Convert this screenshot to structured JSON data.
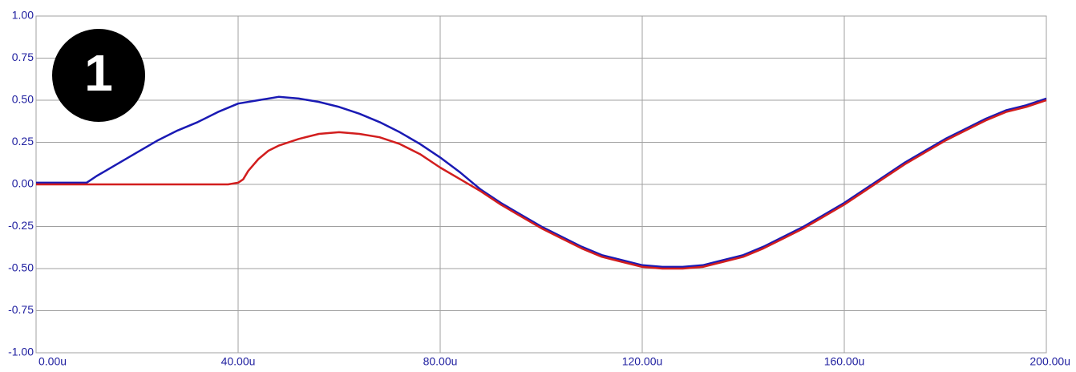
{
  "chart_data": {
    "type": "line",
    "badge": "1",
    "xlim": [
      0,
      200
    ],
    "ylim": [
      -1,
      1
    ],
    "xticks": [
      {
        "value": 0,
        "label": "0.00u"
      },
      {
        "value": 40,
        "label": "40.00u"
      },
      {
        "value": 80,
        "label": "80.00u"
      },
      {
        "value": 120,
        "label": "120.00u"
      },
      {
        "value": 160,
        "label": "160.00u"
      },
      {
        "value": 200,
        "label": "200.00u"
      }
    ],
    "yticks": [
      {
        "value": 1,
        "label": "1.00"
      },
      {
        "value": 0.75,
        "label": "0.75"
      },
      {
        "value": 0.5,
        "label": "0.50"
      },
      {
        "value": 0.25,
        "label": "0.25"
      },
      {
        "value": 0,
        "label": "0.00"
      },
      {
        "value": -0.25,
        "label": "-0.25"
      },
      {
        "value": -0.5,
        "label": "-0.50"
      },
      {
        "value": -0.75,
        "label": "-0.75"
      },
      {
        "value": -1,
        "label": "-1.00"
      }
    ],
    "grid": true,
    "series": [
      {
        "color": "#1a1ab4",
        "x": [
          0,
          10,
          12,
          16,
          20,
          24,
          28,
          32,
          36,
          40,
          44,
          48,
          52,
          56,
          60,
          64,
          68,
          72,
          76,
          80,
          84,
          88,
          92,
          96,
          100,
          104,
          108,
          112,
          116,
          120,
          124,
          128,
          132,
          136,
          140,
          144,
          148,
          152,
          156,
          160,
          164,
          168,
          172,
          176,
          180,
          184,
          188,
          192,
          196,
          200
        ],
        "values": [
          0.01,
          0.01,
          0.05,
          0.12,
          0.19,
          0.26,
          0.32,
          0.37,
          0.43,
          0.48,
          0.5,
          0.52,
          0.51,
          0.49,
          0.46,
          0.42,
          0.37,
          0.31,
          0.24,
          0.16,
          0.07,
          -0.03,
          -0.11,
          -0.18,
          -0.25,
          -0.31,
          -0.37,
          -0.42,
          -0.45,
          -0.48,
          -0.49,
          -0.49,
          -0.48,
          -0.45,
          -0.42,
          -0.37,
          -0.31,
          -0.25,
          -0.18,
          -0.11,
          -0.03,
          0.05,
          0.13,
          0.2,
          0.27,
          0.33,
          0.39,
          0.44,
          0.47,
          0.51
        ]
      },
      {
        "color": "#d21e1e",
        "x": [
          0,
          38,
          40,
          41,
          42,
          44,
          46,
          48,
          52,
          56,
          60,
          64,
          68,
          72,
          76,
          80,
          84,
          88,
          92,
          96,
          100,
          104,
          108,
          112,
          116,
          120,
          124,
          128,
          132,
          136,
          140,
          144,
          148,
          152,
          156,
          160,
          164,
          168,
          172,
          176,
          180,
          184,
          188,
          192,
          196,
          200
        ],
        "values": [
          0,
          0,
          0.01,
          0.03,
          0.08,
          0.15,
          0.2,
          0.23,
          0.27,
          0.3,
          0.31,
          0.3,
          0.28,
          0.24,
          0.18,
          0.1,
          0.03,
          -0.04,
          -0.12,
          -0.19,
          -0.26,
          -0.32,
          -0.38,
          -0.43,
          -0.46,
          -0.49,
          -0.5,
          -0.5,
          -0.49,
          -0.46,
          -0.43,
          -0.38,
          -0.32,
          -0.26,
          -0.19,
          -0.12,
          -0.04,
          0.04,
          0.12,
          0.19,
          0.26,
          0.32,
          0.38,
          0.43,
          0.46,
          0.5
        ]
      }
    ]
  }
}
